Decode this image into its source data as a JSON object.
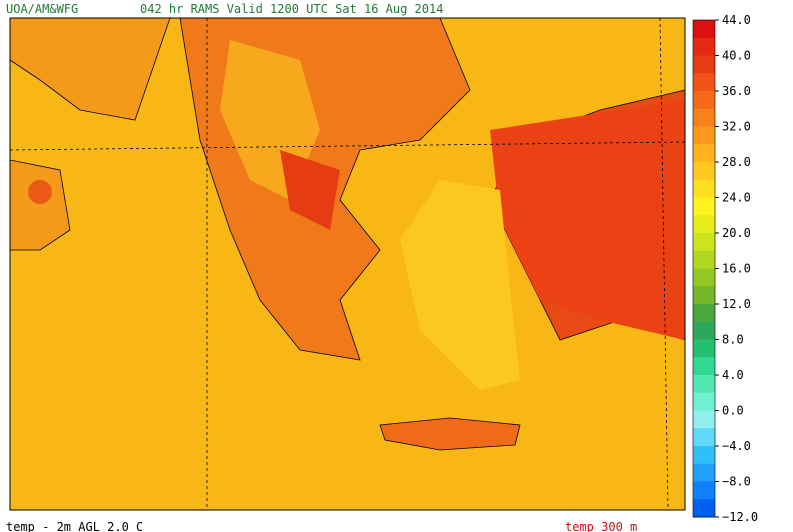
{
  "header": {
    "source": "UOA/AM&WFG",
    "title": "042 hr RAMS Valid 1200 UTC Sat 16 Aug 2014"
  },
  "colorbar": {
    "ticks": [
      {
        "value": 44,
        "label": "44.0"
      },
      {
        "value": 40,
        "label": "40.0"
      },
      {
        "value": 36,
        "label": "36.0"
      },
      {
        "value": 32,
        "label": "32.0"
      },
      {
        "value": 28,
        "label": "28.0"
      },
      {
        "value": 24,
        "label": "24.0"
      },
      {
        "value": 20,
        "label": "20.0"
      },
      {
        "value": 16,
        "label": "16.0"
      },
      {
        "value": 12,
        "label": "12.0"
      },
      {
        "value": 8,
        "label": "8.0"
      },
      {
        "value": 4,
        "label": "4.0"
      },
      {
        "value": 0,
        "label": "0.0"
      },
      {
        "value": -4,
        "label": "−4.0"
      },
      {
        "value": -8,
        "label": "−8.0"
      },
      {
        "value": -12,
        "label": "−12.0"
      }
    ],
    "colors": [
      "#dd1111",
      "#e42a12",
      "#ea3c14",
      "#f05316",
      "#f46a18",
      "#f8821a",
      "#fb9a1c",
      "#fdb21e",
      "#fec820",
      "#ffe020",
      "#fff21e",
      "#e6ee1e",
      "#cce41e",
      "#b0d820",
      "#94c824",
      "#76b82a",
      "#4aa83c",
      "#2ca85a",
      "#22c070",
      "#30d890",
      "#50e8b0",
      "#70f0d0",
      "#90f0f0",
      "#60d8f8",
      "#30c0f8",
      "#20a0f8",
      "#1080f8",
      "#0060f0"
    ]
  },
  "footer": {
    "left": "temp - 2m AGL   2.0 C",
    "right": "temp   300 m"
  }
}
